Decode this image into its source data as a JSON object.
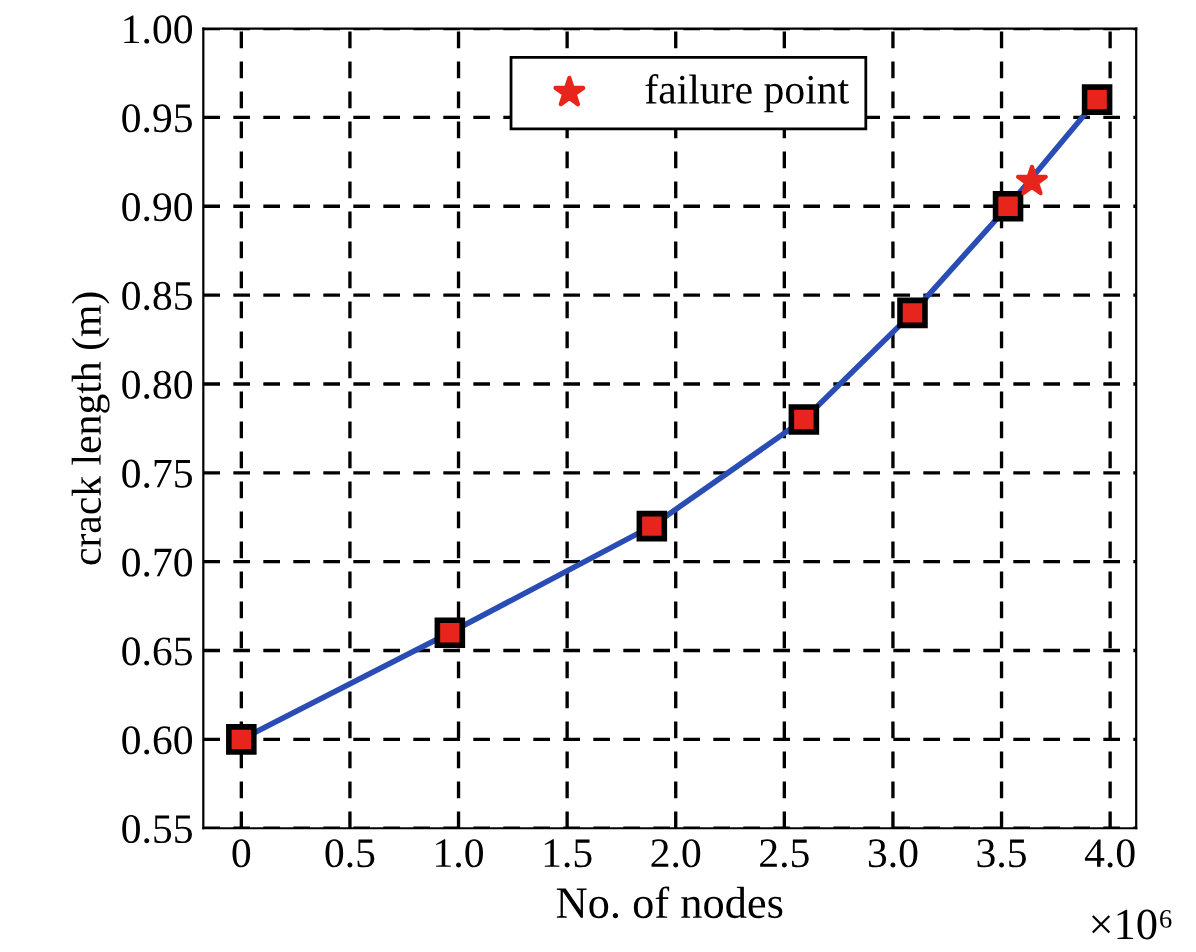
{
  "chart_data": {
    "type": "line",
    "xlabel": "No. of nodes",
    "ylabel": "crack length (m)",
    "series": [
      {
        "color": "#2a4db5",
        "marker": "square",
        "x": [
          0,
          0.96,
          1.89,
          2.59,
          3.09,
          3.53,
          3.94
        ],
        "values": [
          0.6,
          0.66,
          0.72,
          0.78,
          0.84,
          0.9,
          0.96
        ]
      },
      {
        "type": "scatter",
        "name": "failure point",
        "color": "#e8251c",
        "marker": "star",
        "x": [
          3.64
        ],
        "values": [
          0.914
        ]
      }
    ],
    "xlim": [
      -0.175,
      4.12
    ],
    "ylim": [
      0.55,
      1.0
    ],
    "xticks": [
      0,
      0.5,
      {
        "value": 1,
        "label": "1.0"
      },
      1.5,
      {
        "value": 2,
        "label": "2.0"
      },
      2.5,
      {
        "value": 3,
        "label": "3.0"
      },
      3.5,
      {
        "value": 4,
        "label": "4.0"
      }
    ],
    "yticks": [
      0.55,
      {
        "value": 0.6,
        "label": "0.60"
      },
      0.65,
      {
        "value": 0.7,
        "label": "0.70"
      },
      0.75,
      {
        "value": 0.8,
        "label": "0.80"
      },
      0.85,
      {
        "value": 0.9,
        "label": "0.90"
      },
      0.95,
      {
        "value": 1.0,
        "label": "1.00"
      }
    ],
    "annotations": [
      "×10⁶"
    ],
    "grid": true,
    "legend": "top",
    "line_style": "solid"
  }
}
